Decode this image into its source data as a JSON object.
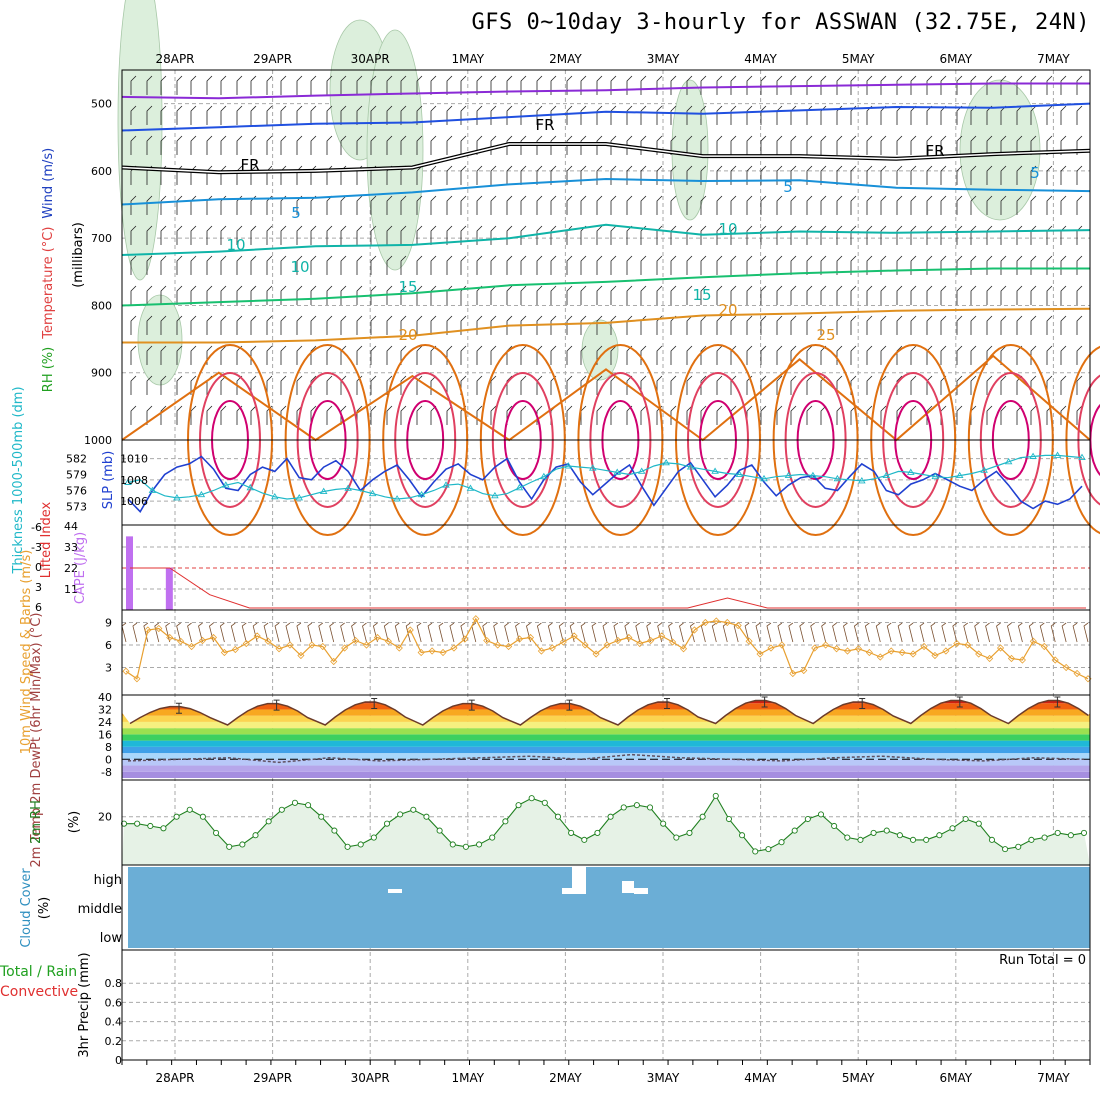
{
  "title": "GFS 0~10day 3-hourly for ASSWAN (32.75E, 24N)",
  "dates": [
    "28APR",
    "29APR",
    "30APR",
    "1MAY",
    "2MAY",
    "3MAY",
    "4MAY",
    "5MAY",
    "6MAY",
    "7MAY"
  ],
  "colors": {
    "slp": "#2040d0",
    "thickness": "#20b8c8",
    "wind10": "#e8a030",
    "rh": "#208020",
    "rh_fill": "#e6f2e6",
    "cloud": "#6baed6",
    "cape": "#c070f0",
    "lifted": "#e03030",
    "grid": "#aaaaaa"
  },
  "chart_data": [
    {
      "type": "line",
      "panel": "upper-air",
      "ylabel_parts": [
        "RH (%)",
        "Temperature (°C)",
        "Wind (m/s)"
      ],
      "yunit": "(millibars)",
      "yticks": [
        500,
        600,
        700,
        800,
        900,
        1000
      ],
      "ylim": [
        450,
        1000
      ],
      "contour_labels": [
        "FR",
        "FR",
        "FR",
        "5",
        "5",
        "5",
        "10",
        "10",
        "10",
        "15",
        "15",
        "20",
        "20",
        "25"
      ],
      "series": [
        {
          "level_c": -10,
          "color": "#8a2ad6",
          "p": [
            490,
            492,
            488,
            485,
            482,
            480,
            476,
            474,
            472,
            470,
            470
          ]
        },
        {
          "level_c": -5,
          "color": "#2050e0",
          "p": [
            540,
            535,
            530,
            528,
            520,
            512,
            515,
            510,
            505,
            506,
            500
          ]
        },
        {
          "level_c": 0,
          "color": "#000000",
          "p": [
            595,
            602,
            600,
            595,
            560,
            560,
            578,
            578,
            582,
            575,
            570
          ]
        },
        {
          "level_c": 5,
          "color": "#1890d8",
          "p": [
            650,
            642,
            640,
            632,
            620,
            612,
            615,
            614,
            625,
            628,
            630
          ]
        },
        {
          "level_c": 10,
          "color": "#10b4a8",
          "p": [
            725,
            720,
            712,
            710,
            700,
            680,
            695,
            690,
            692,
            690,
            688
          ]
        },
        {
          "level_c": 15,
          "color": "#18c070",
          "p": [
            800,
            795,
            790,
            782,
            770,
            765,
            758,
            752,
            748,
            745,
            745
          ]
        },
        {
          "level_c": 20,
          "color": "#e09020",
          "p": [
            855,
            855,
            852,
            845,
            830,
            826,
            815,
            812,
            808,
            806,
            805
          ]
        },
        {
          "level_c": 25,
          "color": "#e07010",
          "p": [
            1000,
            900,
            1000,
            905,
            1000,
            895,
            1000,
            880,
            1000,
            875,
            1000
          ]
        }
      ]
    },
    {
      "type": "line",
      "panel": "slp-thickness",
      "ylabel": "SLP (mb)",
      "ylabel2": "Thickness 1000-500mb (dm)",
      "y_ticks_left": [
        "582",
        "579",
        "576",
        "573"
      ],
      "y_ticks_right": [
        "1010",
        "1008",
        "1006"
      ],
      "ylim_slp": [
        1004.5,
        1011
      ],
      "series": [
        {
          "name": "SLP",
          "values": [
            1006.2,
            1005.0,
            1007.0,
            1008.5,
            1009.2,
            1009.5,
            1010.2,
            1009.0,
            1007.2,
            1007.0,
            1008.5,
            1009.2,
            1008.8,
            1010.0,
            1008.2,
            1008.0,
            1009.2,
            1009.8,
            1008.8,
            1007.0,
            1008.0,
            1008.8,
            1009.4,
            1008.0,
            1006.4,
            1007.8,
            1009.0,
            1009.5,
            1008.5,
            1008.0,
            1009.2,
            1010.0,
            1007.8,
            1006.2,
            1008.0,
            1009.2,
            1009.5,
            1007.8,
            1006.6,
            1007.6,
            1008.6,
            1009.4,
            1007.4,
            1005.6,
            1007.2,
            1008.8,
            1009.6,
            1008.0,
            1006.4,
            1007.5,
            1008.9,
            1009.4,
            1007.8,
            1006.5,
            1007.5,
            1008.2,
            1008.4,
            1007.2,
            1007.0,
            1008.3,
            1009.5,
            1008.8,
            1007.0,
            1006.6,
            1007.6,
            1008.0,
            1008.6,
            1008.0,
            1007.4,
            1007.0,
            1008.0,
            1008.8,
            1007.5,
            1006.0,
            1005.3,
            1006.0,
            1005.7,
            1006.2,
            1007.4
          ]
        },
        {
          "name": "Thickness",
          "values": [
            577.5,
            578.0,
            576.0,
            575.0,
            574.6,
            574.8,
            575.2,
            576.0,
            577.0,
            577.5,
            576.5,
            575.5,
            574.8,
            574.4,
            574.6,
            575.2,
            575.8,
            576.2,
            576.4,
            576.0,
            575.4,
            574.8,
            574.4,
            574.6,
            575.2,
            576.0,
            577.0,
            577.2,
            576.4,
            575.4,
            575.0,
            575.4,
            576.5,
            577.6,
            578.6,
            580.0,
            580.6,
            580.4,
            580.2,
            579.8,
            579.4,
            579.0,
            579.6,
            580.6,
            581.2,
            581.0,
            580.4,
            580.0,
            579.6,
            579.2,
            579.0,
            578.6,
            578.2,
            578.6,
            578.8,
            579.0,
            578.8,
            578.6,
            578.2,
            578.0,
            577.8,
            578.2,
            578.8,
            579.6,
            579.4,
            579.0,
            578.6,
            578.4,
            578.8,
            579.2,
            579.8,
            580.6,
            581.4,
            582.2,
            582.4,
            582.6,
            582.6,
            582.4,
            582.2
          ]
        }
      ]
    },
    {
      "type": "bar",
      "panel": "cape-li",
      "ylabel": "CAPE (J/kg)",
      "ylabel2": "Lifted Index",
      "y_ticks_left": [
        "44",
        "33",
        "22",
        "11"
      ],
      "y_ticks_right": [
        "-6",
        "-3",
        "0",
        "3",
        "6"
      ],
      "series": [
        {
          "name": "CAPE",
          "values": [
            40,
            23,
            0,
            0,
            0,
            0,
            0,
            0,
            0,
            0,
            0,
            0,
            0,
            0,
            0,
            0,
            0,
            0,
            0,
            0,
            0,
            0,
            0,
            0,
            0
          ]
        },
        {
          "name": "Lifted Index",
          "values": [
            0,
            0,
            4,
            6,
            6,
            6,
            6,
            6,
            6,
            6,
            6,
            6,
            6,
            6,
            6,
            4.5,
            6,
            6,
            6,
            6,
            6,
            6,
            6,
            6,
            6
          ]
        }
      ]
    },
    {
      "type": "line",
      "panel": "wind10m",
      "ylabel": "10m Wind Speed & Barbs (m/s)",
      "yticks": [
        3,
        6,
        9
      ],
      "ylim": [
        0,
        10
      ],
      "series": [
        {
          "name": "10m Wind Speed",
          "values": [
            2.5,
            1.5,
            8.0,
            8.2,
            7.0,
            6.5,
            5.8,
            6.6,
            7.0,
            5.0,
            5.4,
            6.2,
            7.2,
            6.5,
            5.5,
            6.0,
            4.6,
            6.0,
            5.8,
            3.8,
            5.6,
            6.6,
            6.0,
            7.0,
            6.5,
            5.6,
            8.0,
            5.0,
            5.2,
            5.0,
            5.6,
            6.8,
            9.5,
            6.6,
            6.0,
            5.8,
            6.8,
            7.0,
            5.2,
            5.6,
            6.4,
            7.2,
            6.0,
            4.8,
            6.0,
            6.6,
            7.0,
            6.2,
            6.6,
            7.2,
            6.4,
            5.5,
            8.0,
            9.0,
            9.2,
            9.0,
            8.6,
            6.5,
            4.8,
            5.6,
            6.0,
            2.2,
            2.6,
            5.6,
            6.0,
            5.5,
            5.2,
            5.5,
            5.0,
            4.4,
            5.2,
            5.0,
            4.8,
            5.8,
            4.6,
            5.2,
            6.2,
            6.0,
            4.8,
            4.2,
            5.6,
            4.2,
            4.0,
            6.5,
            5.8,
            4.0,
            3.0,
            2.2,
            1.5
          ]
        }
      ]
    },
    {
      "type": "area",
      "panel": "temperature",
      "ylabel": "2m Temp 2m DewPt (6hr Min/Max) (°C)",
      "yticks": [
        "40",
        "32",
        "24",
        "16",
        "8",
        "0",
        "-8"
      ],
      "ylim": [
        -12,
        40
      ],
      "series": [
        {
          "name": "2m Temp max",
          "values": [
            34,
            36,
            37,
            36,
            36,
            37,
            38,
            37,
            38,
            38
          ]
        },
        {
          "name": "2m Temp min",
          "values": [
            23,
            22,
            22,
            22,
            22,
            22,
            23,
            23,
            23,
            23
          ]
        },
        {
          "name": "2m DewPt",
          "values": [
            -1,
            0,
            1,
            -2,
            1,
            -1,
            0,
            1,
            2,
            0,
            3,
            1,
            0,
            -1,
            1,
            2,
            0,
            -1,
            1,
            0
          ]
        }
      ]
    },
    {
      "type": "line",
      "panel": "rh2m",
      "ylabel": "2m RH",
      "yunit": "(%)",
      "yticks": [
        20
      ],
      "ylim": [
        0,
        35
      ],
      "series": [
        {
          "name": "2m RH",
          "values": [
            17,
            17,
            16,
            15,
            20,
            23,
            20,
            13,
            7,
            8,
            12,
            18,
            23,
            26,
            25,
            20,
            14,
            7,
            8,
            11,
            17,
            21,
            23,
            20,
            14,
            8,
            7,
            8,
            11,
            18,
            25,
            28,
            26,
            20,
            13,
            10,
            13,
            20,
            24,
            25,
            24,
            17,
            11,
            13,
            20,
            29,
            19,
            12,
            5,
            6,
            9,
            14,
            19,
            21,
            16,
            11,
            10,
            13,
            14,
            12,
            10,
            10,
            12,
            15,
            19,
            17,
            10,
            6,
            7,
            10,
            11,
            13,
            12,
            13
          ]
        }
      ]
    },
    {
      "type": "heatmap",
      "panel": "cloud",
      "ylabel": "Cloud Cover",
      "yunit": "(%)",
      "yticks": [
        "high",
        "middle",
        "low"
      ]
    },
    {
      "type": "bar",
      "panel": "precip",
      "ylabel": "3hr Precip (mm)",
      "ylabel2_total": "Total / Rain",
      "ylabel2_conv": "Convective",
      "yticks": [
        "0.8",
        "0.6",
        "0.4",
        "0.2",
        "0"
      ],
      "ylim": [
        0,
        1
      ],
      "annotation": "Run Total = 0",
      "values": []
    }
  ]
}
